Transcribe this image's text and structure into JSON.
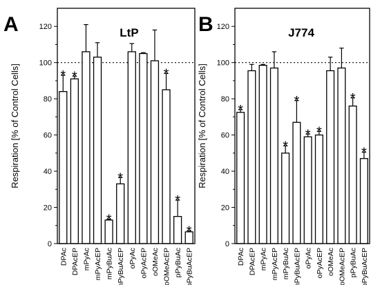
{
  "chart_data": [
    {
      "type": "bar",
      "panel": "A",
      "title": "LtP",
      "ylabel": "Respiration [% of Control Cells]",
      "ylim": [
        0,
        130
      ],
      "yticks": [
        0,
        20,
        40,
        60,
        80,
        100,
        120
      ],
      "reference_line": 100,
      "categories": [
        "DPAc",
        "DPAcEP",
        "mPyAc",
        "mPyAcEP",
        "mPyBuAc",
        "mPyBuAcEP",
        "oPyAc",
        "oPyAcEP",
        "oOMeAc",
        "oOMeAcEP",
        "pPyBuAc",
        "pPyBuAcEP"
      ],
      "values": [
        84,
        91,
        106,
        103,
        13,
        33,
        106,
        105,
        101,
        85,
        15,
        6.5
      ],
      "errors": [
        9,
        1.5,
        15,
        8,
        0.5,
        3.5,
        4.5,
        0.5,
        17,
        9,
        9,
        0.5
      ],
      "significant": [
        true,
        true,
        false,
        false,
        true,
        true,
        false,
        false,
        false,
        true,
        true,
        true
      ]
    },
    {
      "type": "bar",
      "panel": "B",
      "title": "J774",
      "ylabel": "Respiration [% of Control Cells]",
      "ylim": [
        0,
        130
      ],
      "yticks": [
        0,
        20,
        40,
        60,
        80,
        100,
        120
      ],
      "reference_line": 100,
      "categories": [
        "DPAc",
        "DPAcEP",
        "mPyAc",
        "mPyAcEP",
        "mPyBuAc",
        "mPyBuAcEP",
        "oPyAc",
        "oPyAcEP",
        "oOMeAc",
        "oOMeAcEP",
        "pPyBuAc",
        "pPyBuAcEP"
      ],
      "values": [
        72.5,
        95.5,
        98.5,
        97,
        50,
        67,
        59,
        60,
        95.5,
        97,
        76,
        47
      ],
      "errors": [
        1.5,
        3.5,
        0.5,
        9,
        4,
        12,
        1.5,
        2,
        7.5,
        11,
        4.5,
        3.5
      ],
      "significant": [
        true,
        false,
        false,
        false,
        true,
        true,
        true,
        true,
        false,
        false,
        true,
        true
      ]
    }
  ]
}
